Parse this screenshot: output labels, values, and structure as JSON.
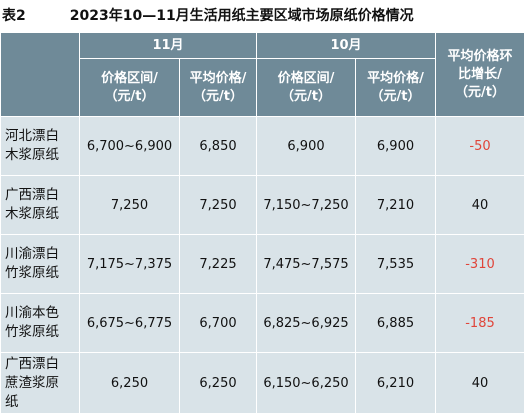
{
  "caption": {
    "number": "表2",
    "title": "2023年10—11月生活用纸主要区域市场原纸价格情况"
  },
  "header": {
    "month_nov": "11月",
    "month_oct": "10月",
    "range_col": "价格区间/（元/t）",
    "avg_col": "平均价格/（元/t）",
    "yoy_col": "平均价格环比增长/（元/t）"
  },
  "rows": [
    {
      "name": "河北漂白木浆原纸",
      "nov_range": "6,700~6,900",
      "nov_avg": "6,850",
      "oct_range": "6,900",
      "oct_avg": "6,900",
      "change": "-50"
    },
    {
      "name": "广西漂白木浆原纸",
      "nov_range": "7,250",
      "nov_avg": "7,250",
      "oct_range": "7,150~7,250",
      "oct_avg": "7,210",
      "change": "40"
    },
    {
      "name": "川渝漂白竹浆原纸",
      "nov_range": "7,175~7,375",
      "nov_avg": "7,225",
      "oct_range": "7,475~7,575",
      "oct_avg": "7,535",
      "change": "-310"
    },
    {
      "name": "川渝本色竹浆原纸",
      "nov_range": "6,675~6,775",
      "nov_avg": "6,700",
      "oct_range": "6,825~6,925",
      "oct_avg": "6,885",
      "change": "-185"
    },
    {
      "name": "广西漂白蔗渣浆原纸",
      "nov_range": "6,250",
      "nov_avg": "6,250",
      "oct_range": "6,150~6,250",
      "oct_avg": "6,210",
      "change": "40"
    }
  ],
  "colors": {
    "header_bg": "#6f8a98",
    "cell_bg": "#d9e3e8",
    "negative": "#e0453a"
  }
}
